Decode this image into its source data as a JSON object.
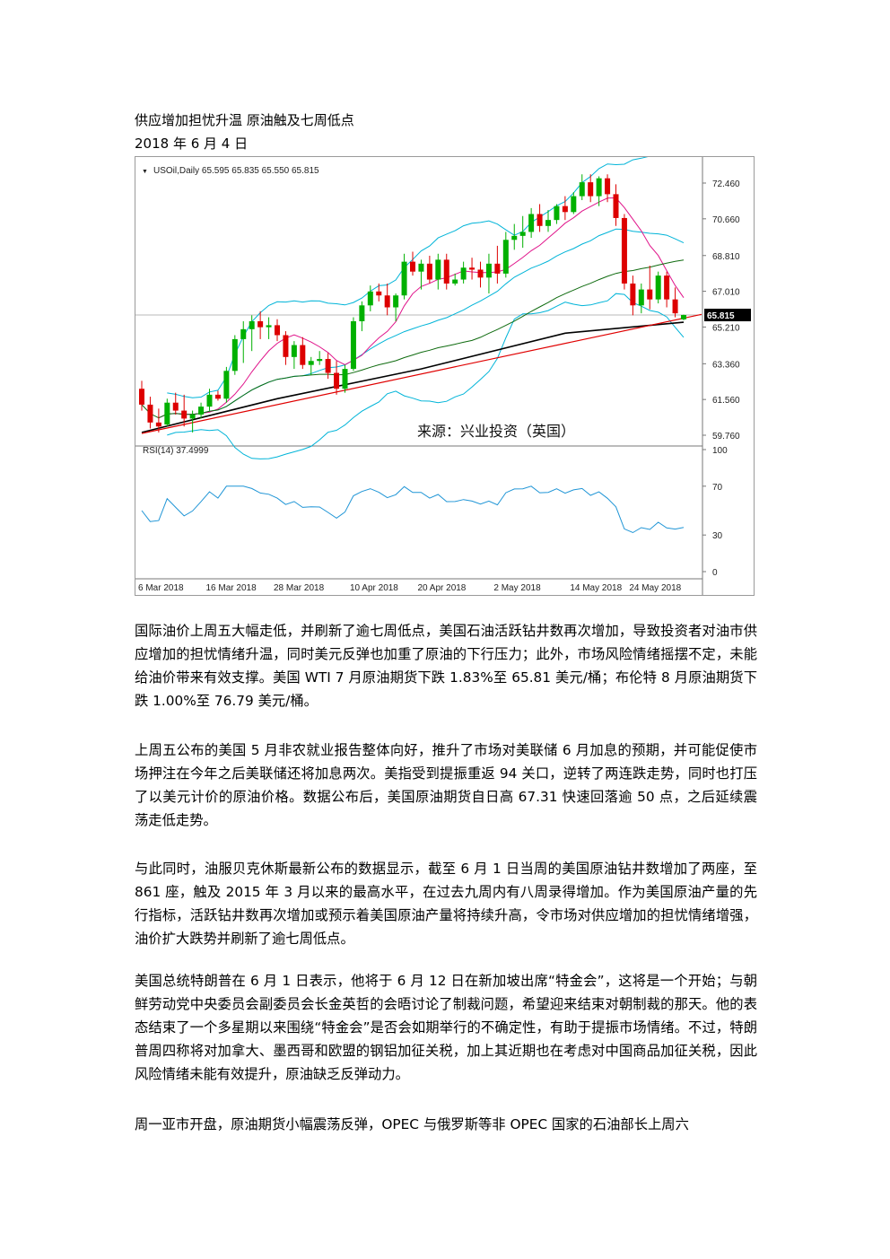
{
  "document": {
    "title": "供应增加担忧升温  原油触及七周低点",
    "date": "2018 年 6 月 4 日",
    "paragraphs": [
      "国际油价上周五大幅走低，并刷新了逾七周低点，美国石油活跃钻井数再次增加，导致投资者对油市供应增加的担忧情绪升温，同时美元反弹也加重了原油的下行压力；此外，市场风险情绪摇摆不定，未能给油价带来有效支撑。美国 WTI 7 月原油期货下跌 1.83%至 65.81 美元/桶；布伦特 8 月原油期货下跌 1.00%至 76.79 美元/桶。",
      "上周五公布的美国 5 月非农就业报告整体向好，推升了市场对美联储 6 月加息的预期，并可能促使市场押注在今年之后美联储还将加息两次。美指受到提振重返 94 关口，逆转了两连跌走势，同时也打压了以美元计价的原油价格。数据公布后，美国原油期货自日高 67.31 快速回落逾 50 点，之后延续震荡走低走势。",
      "与此同时，油服贝克休斯最新公布的数据显示，截至 6 月 1 日当周的美国原油钻井数增加了两座，至 861 座，触及 2015 年 3 月以来的最高水平，在过去九周内有八周录得增加。作为美国原油产量的先行指标，活跃钻井数再次增加或预示着美国原油产量将持续升高，令市场对供应增加的担忧情绪增强，油价扩大跌势并刷新了逾七周低点。",
      "美国总统特朗普在 6 月 1 日表示，他将于 6 月 12 日在新加坡出席“特金会”，这将是一个开始；与朝鲜劳动党中央委员会副委员会长金英哲的会晤讨论了制裁问题，希望迎来结束对朝制裁的那天。他的表态结束了一个多星期以来围绕“特金会”是否会如期举行的不确定性，有助于提振市场情绪。不过，特朗普周四称将对加拿大、墨西哥和欧盟的钢铝加征关税，加上其近期也在考虑对中国商品加征关税，因此风险情绪未能有效提升，原油缺乏反弹动力。",
      "周一亚市开盘，原油期货小幅震荡反弹，OPEC 与俄罗斯等非 OPEC 国家的石油部长上周六"
    ]
  },
  "chart_data": {
    "type": "candlestick",
    "header": "USOil,Daily  65.595 65.835 65.550 65.815",
    "watermark": "来源：兴业投资（英国）",
    "price_labels": [
      "72.460",
      "70.660",
      "68.810",
      "67.010",
      "65.210",
      "63.360",
      "61.560",
      "59.760"
    ],
    "price_ylim": [
      59.76,
      72.46
    ],
    "current_price": "65.815",
    "rsi_header": "RSI(14) 37.4999",
    "rsi_labels": [
      "100",
      "70",
      "30",
      "0"
    ],
    "rsi_ylim": [
      0,
      100
    ],
    "x_labels": [
      "6 Mar 2018",
      "16 Mar 2018",
      "28 Mar 2018",
      "10 Apr 2018",
      "20 Apr 2018",
      "2 May 2018",
      "14 May 2018",
      "24 May 2018"
    ],
    "colors": {
      "up": "#00b000",
      "down": "#dd0000",
      "bb": "#00b4d8",
      "ma_short": "#e0138a",
      "ma_mid": "#0f6b0f",
      "ma_long": "#000000",
      "trend": "#e00000",
      "rsi": "#1f95d6"
    },
    "candles": [
      {
        "o": 62.1,
        "h": 62.5,
        "l": 61.0,
        "c": 61.3
      },
      {
        "o": 61.3,
        "h": 61.7,
        "l": 60.1,
        "c": 60.4
      },
      {
        "o": 60.4,
        "h": 61.1,
        "l": 59.9,
        "c": 60.2
      },
      {
        "o": 60.3,
        "h": 61.6,
        "l": 60.2,
        "c": 61.4
      },
      {
        "o": 61.4,
        "h": 61.9,
        "l": 60.8,
        "c": 61.0
      },
      {
        "o": 61.0,
        "h": 61.8,
        "l": 60.2,
        "c": 60.6
      },
      {
        "o": 60.6,
        "h": 61.0,
        "l": 59.9,
        "c": 60.8
      },
      {
        "o": 60.8,
        "h": 61.4,
        "l": 60.6,
        "c": 61.2
      },
      {
        "o": 61.2,
        "h": 62.1,
        "l": 61.0,
        "c": 61.8
      },
      {
        "o": 61.8,
        "h": 62.0,
        "l": 61.5,
        "c": 61.6
      },
      {
        "o": 61.6,
        "h": 63.2,
        "l": 61.4,
        "c": 63.0
      },
      {
        "o": 63.0,
        "h": 64.8,
        "l": 62.8,
        "c": 64.6
      },
      {
        "o": 64.6,
        "h": 65.5,
        "l": 63.4,
        "c": 65.1
      },
      {
        "o": 65.1,
        "h": 65.8,
        "l": 64.0,
        "c": 65.5
      },
      {
        "o": 65.5,
        "h": 66.0,
        "l": 64.6,
        "c": 65.2
      },
      {
        "o": 65.2,
        "h": 65.7,
        "l": 64.6,
        "c": 65.3
      },
      {
        "o": 65.3,
        "h": 65.6,
        "l": 64.5,
        "c": 64.8
      },
      {
        "o": 64.8,
        "h": 65.0,
        "l": 63.3,
        "c": 63.7
      },
      {
        "o": 63.7,
        "h": 64.5,
        "l": 63.1,
        "c": 64.3
      },
      {
        "o": 64.3,
        "h": 64.7,
        "l": 63.1,
        "c": 63.3
      },
      {
        "o": 63.3,
        "h": 63.7,
        "l": 62.8,
        "c": 63.5
      },
      {
        "o": 63.5,
        "h": 64.0,
        "l": 63.3,
        "c": 63.6
      },
      {
        "o": 63.6,
        "h": 63.9,
        "l": 62.6,
        "c": 62.9
      },
      {
        "o": 62.9,
        "h": 63.5,
        "l": 61.8,
        "c": 62.1
      },
      {
        "o": 62.1,
        "h": 63.3,
        "l": 61.9,
        "c": 63.1
      },
      {
        "o": 63.1,
        "h": 65.7,
        "l": 63.0,
        "c": 65.5
      },
      {
        "o": 65.5,
        "h": 66.5,
        "l": 65.0,
        "c": 66.3
      },
      {
        "o": 66.3,
        "h": 67.3,
        "l": 66.0,
        "c": 67.0
      },
      {
        "o": 67.0,
        "h": 67.4,
        "l": 66.5,
        "c": 66.8
      },
      {
        "o": 66.8,
        "h": 67.4,
        "l": 65.8,
        "c": 66.2
      },
      {
        "o": 66.2,
        "h": 66.9,
        "l": 65.5,
        "c": 66.8
      },
      {
        "o": 66.8,
        "h": 68.9,
        "l": 66.6,
        "c": 68.5
      },
      {
        "o": 68.5,
        "h": 69.0,
        "l": 67.8,
        "c": 68.0
      },
      {
        "o": 68.0,
        "h": 68.6,
        "l": 67.1,
        "c": 68.4
      },
      {
        "o": 68.4,
        "h": 68.8,
        "l": 67.4,
        "c": 67.6
      },
      {
        "o": 67.6,
        "h": 68.9,
        "l": 67.1,
        "c": 68.6
      },
      {
        "o": 68.6,
        "h": 68.9,
        "l": 67.1,
        "c": 67.4
      },
      {
        "o": 67.4,
        "h": 67.9,
        "l": 67.3,
        "c": 67.6
      },
      {
        "o": 67.6,
        "h": 68.5,
        "l": 67.4,
        "c": 68.2
      },
      {
        "o": 68.2,
        "h": 68.7,
        "l": 67.6,
        "c": 68.1
      },
      {
        "o": 68.1,
        "h": 68.5,
        "l": 67.2,
        "c": 67.7
      },
      {
        "o": 67.7,
        "h": 68.9,
        "l": 66.9,
        "c": 68.4
      },
      {
        "o": 68.4,
        "h": 69.3,
        "l": 67.4,
        "c": 67.9
      },
      {
        "o": 67.9,
        "h": 70.0,
        "l": 67.7,
        "c": 69.6
      },
      {
        "o": 69.6,
        "h": 70.4,
        "l": 69.1,
        "c": 69.8
      },
      {
        "o": 69.8,
        "h": 70.8,
        "l": 69.2,
        "c": 70.0
      },
      {
        "o": 70.0,
        "h": 71.2,
        "l": 69.7,
        "c": 70.9
      },
      {
        "o": 70.9,
        "h": 71.4,
        "l": 70.0,
        "c": 70.3
      },
      {
        "o": 70.3,
        "h": 71.1,
        "l": 70.0,
        "c": 70.6
      },
      {
        "o": 70.6,
        "h": 71.4,
        "l": 70.4,
        "c": 71.3
      },
      {
        "o": 71.3,
        "h": 71.8,
        "l": 70.6,
        "c": 71.0
      },
      {
        "o": 71.0,
        "h": 72.0,
        "l": 70.9,
        "c": 71.8
      },
      {
        "o": 71.8,
        "h": 72.9,
        "l": 71.6,
        "c": 72.5
      },
      {
        "o": 72.5,
        "h": 72.9,
        "l": 71.5,
        "c": 71.8
      },
      {
        "o": 71.8,
        "h": 72.8,
        "l": 71.3,
        "c": 72.7
      },
      {
        "o": 72.7,
        "h": 72.9,
        "l": 71.5,
        "c": 71.9
      },
      {
        "o": 71.9,
        "h": 72.4,
        "l": 70.3,
        "c": 70.7
      },
      {
        "o": 70.7,
        "h": 70.9,
        "l": 67.1,
        "c": 67.4
      },
      {
        "o": 67.4,
        "h": 67.8,
        "l": 65.8,
        "c": 66.3
      },
      {
        "o": 66.3,
        "h": 67.4,
        "l": 65.9,
        "c": 67.1
      },
      {
        "o": 67.1,
        "h": 68.3,
        "l": 66.1,
        "c": 66.6
      },
      {
        "o": 66.6,
        "h": 68.0,
        "l": 66.4,
        "c": 67.8
      },
      {
        "o": 67.8,
        "h": 68.0,
        "l": 66.2,
        "c": 66.6
      },
      {
        "o": 66.6,
        "h": 67.2,
        "l": 65.7,
        "c": 65.9
      },
      {
        "o": 65.595,
        "h": 65.835,
        "l": 65.55,
        "c": 65.815
      }
    ]
  }
}
